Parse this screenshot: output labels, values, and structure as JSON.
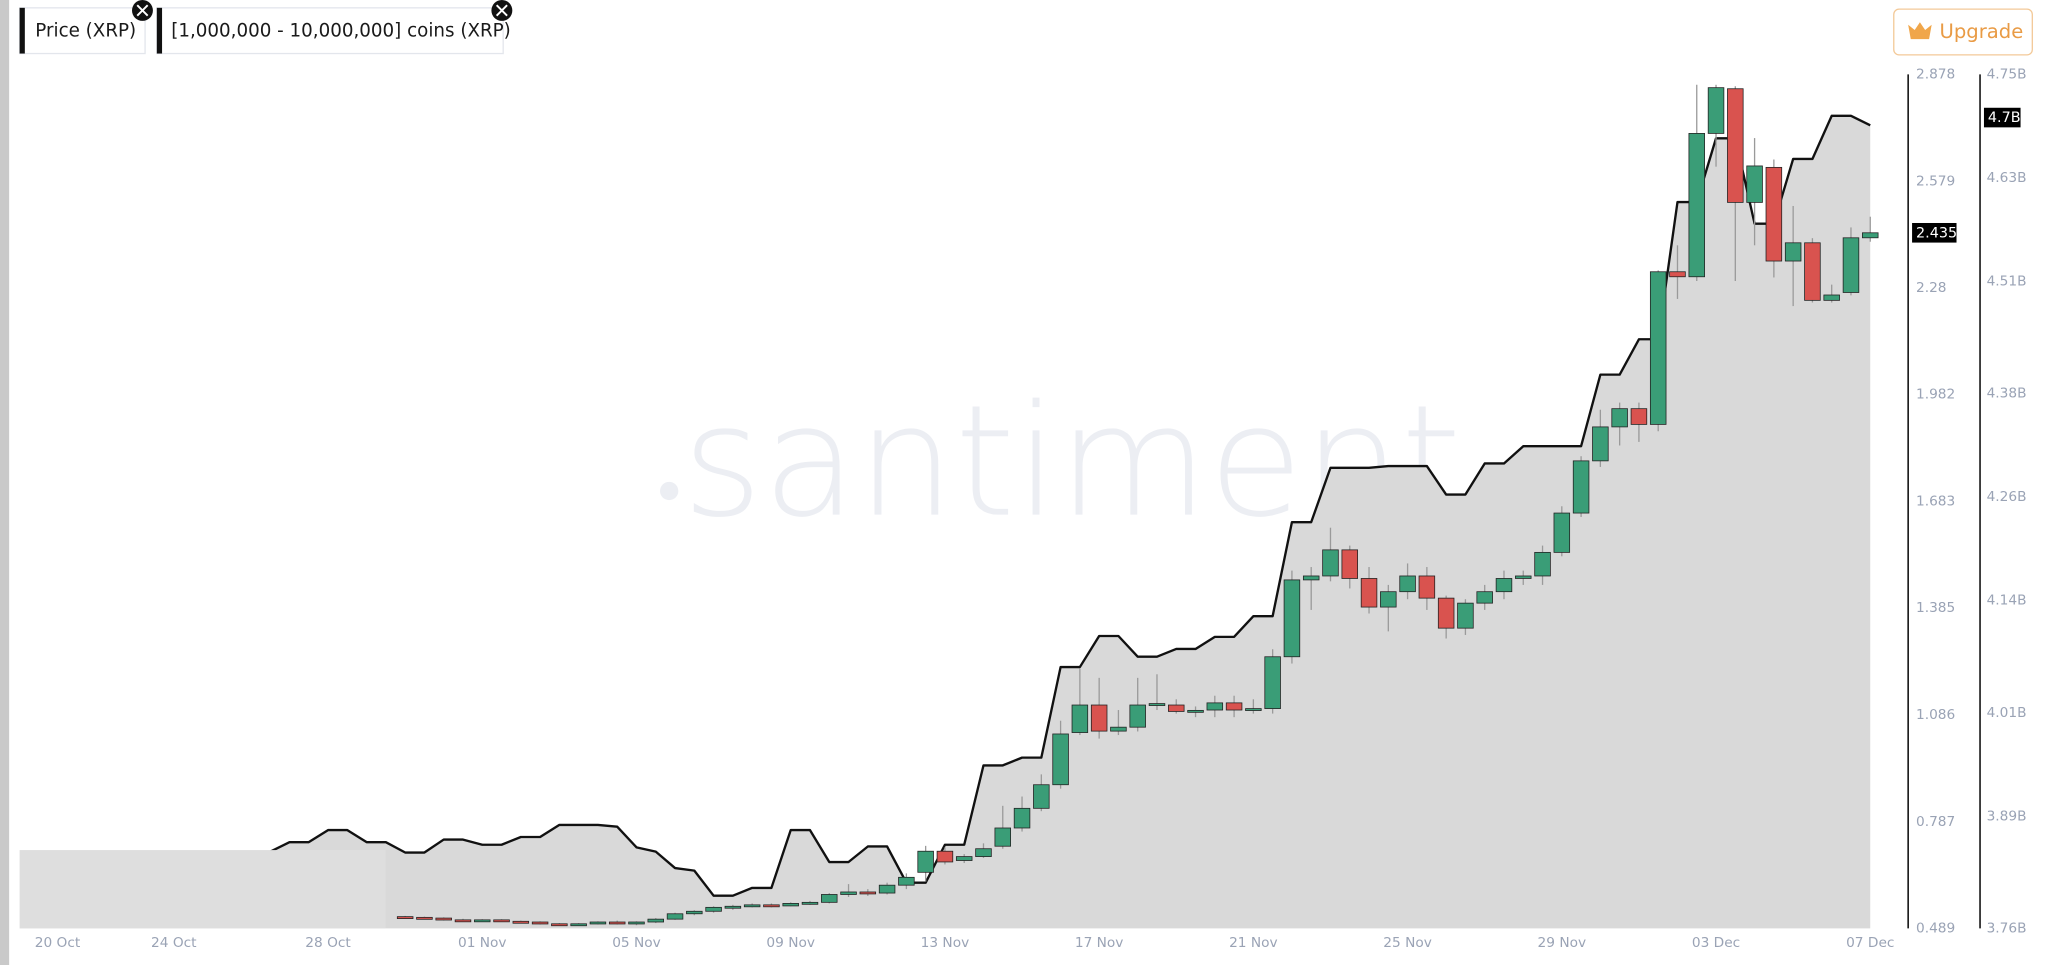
{
  "chart_data": {
    "type": "candlestick",
    "categories": [
      "20 Oct",
      null,
      null,
      null,
      null,
      null,
      null,
      null,
      "24 Oct",
      null,
      null,
      null,
      null,
      null,
      null,
      null,
      "28 Oct",
      null,
      null,
      null,
      null,
      null,
      null,
      null,
      "01 Nov",
      null,
      null,
      null,
      null,
      null,
      null,
      null,
      "05 Nov",
      null,
      null,
      null,
      null,
      null,
      null,
      null,
      "09 Nov",
      null,
      null,
      null,
      null,
      null,
      null,
      null,
      "13 Nov",
      null,
      null,
      null,
      null,
      null,
      null,
      null,
      "17 Nov",
      null,
      null,
      null,
      null,
      null,
      null,
      null,
      "21 Nov",
      null,
      null,
      null,
      null,
      null,
      null,
      null,
      "25 Nov",
      null,
      null,
      null,
      null,
      null,
      null,
      null,
      "29 Nov",
      null,
      null,
      null,
      null,
      null,
      null,
      null,
      "03 Dec",
      null,
      null,
      null,
      null,
      null,
      null,
      null,
      "07 Dec"
    ],
    "series": [
      {
        "name": "Price (XRP)",
        "type": "candlestick",
        "up_color": "#3a9d77",
        "down_color": "#d9534f",
        "open": [
          null,
          null,
          null,
          null,
          null,
          null,
          null,
          null,
          null,
          null,
          null,
          null,
          null,
          null,
          null,
          null,
          null,
          null,
          null,
          null,
          0.522,
          0.52,
          0.518,
          0.513,
          0.511,
          0.513,
          0.509,
          0.507,
          0.502,
          0.5,
          0.502,
          0.507,
          0.504,
          0.507,
          0.515,
          0.53,
          0.537,
          0.548,
          0.551,
          0.555,
          0.552,
          0.559,
          0.562,
          0.584,
          0.591,
          0.588,
          0.61,
          0.646,
          0.705,
          0.679,
          0.69,
          0.719,
          0.77,
          0.825,
          0.891,
          1.037,
          1.114,
          1.041,
          1.052,
          1.114,
          1.114,
          1.096,
          1.1,
          1.12,
          1.1,
          1.104,
          1.249,
          1.464,
          1.475,
          1.548,
          1.468,
          1.388,
          1.431,
          1.475,
          1.413,
          1.329,
          1.399,
          1.431,
          1.468,
          1.475,
          1.541,
          1.651,
          1.797,
          1.892,
          1.943,
          1.899,
          2.326,
          2.312,
          2.713,
          2.838,
          2.52,
          2.618,
          2.356,
          2.407,
          2.246,
          2.268,
          2.421
        ],
        "high": [
          null,
          null,
          null,
          null,
          null,
          null,
          null,
          null,
          null,
          null,
          null,
          null,
          null,
          null,
          null,
          null,
          null,
          null,
          null,
          null,
          0.524,
          0.522,
          0.52,
          0.516,
          0.515,
          0.515,
          0.511,
          0.509,
          0.504,
          0.504,
          0.509,
          0.511,
          0.509,
          0.518,
          0.533,
          0.54,
          0.551,
          0.555,
          0.559,
          0.559,
          0.562,
          0.566,
          0.588,
          0.613,
          0.599,
          0.617,
          0.643,
          0.72,
          0.716,
          0.697,
          0.727,
          0.832,
          0.858,
          0.92,
          1.07,
          1.216,
          1.19,
          1.1,
          1.19,
          1.2,
          1.13,
          1.11,
          1.14,
          1.14,
          1.13,
          1.27,
          1.49,
          1.5,
          1.61,
          1.56,
          1.5,
          1.45,
          1.51,
          1.5,
          1.42,
          1.41,
          1.45,
          1.49,
          1.49,
          1.56,
          1.67,
          1.81,
          1.94,
          1.96,
          1.96,
          2.33,
          2.4,
          2.849,
          2.849,
          2.845,
          2.7,
          2.64,
          2.51,
          2.42,
          2.29,
          2.45,
          2.48
        ],
        "low": [
          null,
          null,
          null,
          null,
          null,
          null,
          null,
          null,
          null,
          null,
          null,
          null,
          null,
          null,
          null,
          null,
          null,
          null,
          null,
          null,
          0.518,
          0.516,
          0.511,
          0.509,
          0.509,
          0.507,
          0.504,
          0.5,
          0.496,
          0.496,
          0.5,
          0.5,
          0.498,
          0.504,
          0.513,
          0.526,
          0.533,
          0.541,
          0.548,
          0.548,
          0.551,
          0.555,
          0.559,
          0.577,
          0.58,
          0.584,
          0.599,
          0.62,
          0.668,
          0.672,
          0.686,
          0.712,
          0.76,
          0.817,
          0.88,
          1.03,
          1.02,
          1.03,
          1.04,
          1.1,
          1.09,
          1.08,
          1.08,
          1.08,
          1.09,
          1.09,
          1.23,
          1.38,
          1.46,
          1.44,
          1.37,
          1.32,
          1.41,
          1.38,
          1.3,
          1.31,
          1.38,
          1.41,
          1.45,
          1.45,
          1.53,
          1.64,
          1.78,
          1.84,
          1.85,
          1.88,
          2.25,
          2.3,
          2.62,
          2.3,
          2.4,
          2.31,
          2.23,
          2.24,
          2.24,
          2.26,
          2.41
        ],
        "close": [
          null,
          null,
          null,
          null,
          null,
          null,
          null,
          null,
          null,
          null,
          null,
          null,
          null,
          null,
          null,
          null,
          null,
          null,
          null,
          null,
          0.52,
          0.518,
          0.513,
          0.511,
          0.513,
          0.509,
          0.507,
          0.502,
          0.5,
          0.502,
          0.507,
          0.504,
          0.507,
          0.515,
          0.53,
          0.537,
          0.548,
          0.551,
          0.555,
          0.552,
          0.559,
          0.562,
          0.584,
          0.591,
          0.588,
          0.61,
          0.632,
          0.705,
          0.675,
          0.69,
          0.712,
          0.77,
          0.825,
          0.891,
          1.033,
          1.114,
          1.041,
          1.052,
          1.114,
          1.118,
          1.096,
          1.099,
          1.12,
          1.1,
          1.104,
          1.249,
          1.464,
          1.475,
          1.548,
          1.468,
          1.388,
          1.431,
          1.475,
          1.413,
          1.329,
          1.399,
          1.431,
          1.468,
          1.475,
          1.541,
          1.651,
          1.797,
          1.892,
          1.943,
          1.899,
          2.326,
          2.312,
          2.713,
          2.841,
          2.52,
          2.622,
          2.356,
          2.407,
          2.246,
          2.261,
          2.421,
          2.435
        ]
      },
      {
        "name": "[1,000,000 - 10,000,000] coins (XRP)",
        "type": "area",
        "axis": "y2",
        "color": "#111111",
        "fill": "#d9d9d9",
        "values": [
          null,
          null,
          null,
          null,
          null,
          null,
          null,
          null,
          null,
          null,
          null,
          null,
          null,
          3.849,
          3.86,
          3.86,
          3.874,
          3.874,
          3.86,
          3.86,
          3.848,
          3.848,
          3.863,
          3.863,
          3.857,
          3.857,
          3.866,
          3.866,
          3.88,
          3.88,
          3.88,
          3.878,
          3.854,
          3.849,
          3.83,
          3.827,
          3.798,
          3.798,
          3.807,
          3.807,
          3.874,
          3.874,
          3.837,
          3.837,
          3.855,
          3.855,
          3.813,
          3.813,
          3.857,
          3.857,
          3.949,
          3.949,
          3.958,
          3.958,
          4.063,
          4.063,
          4.099,
          4.099,
          4.075,
          4.075,
          4.084,
          4.084,
          4.098,
          4.098,
          4.122,
          4.122,
          4.231,
          4.231,
          4.294,
          4.294,
          4.294,
          4.296,
          4.296,
          4.296,
          4.263,
          4.263,
          4.299,
          4.299,
          4.319,
          4.319,
          4.319,
          4.319,
          4.402,
          4.402,
          4.443,
          4.443,
          4.602,
          4.602,
          4.676,
          4.676,
          4.577,
          4.577,
          4.652,
          4.652,
          4.702,
          4.702,
          4.691
        ]
      }
    ],
    "ylim": [
      0.489,
      2.878
    ],
    "yticks": [
      0.489,
      0.787,
      1.086,
      1.385,
      1.683,
      1.982,
      2.28,
      2.579,
      2.878
    ],
    "y2lim": [
      3.76,
      4.75
    ],
    "y2ticks": [
      {
        "value": 3.76,
        "label": "3.76B"
      },
      {
        "value": 3.89,
        "label": "3.89B"
      },
      {
        "value": 4.01,
        "label": "4.01B"
      },
      {
        "value": 4.14,
        "label": "4.14B"
      },
      {
        "value": 4.26,
        "label": "4.26B"
      },
      {
        "value": 4.38,
        "label": "4.38B"
      },
      {
        "value": 4.51,
        "label": "4.51B"
      },
      {
        "value": 4.63,
        "label": "4.63B"
      },
      {
        "value": 4.75,
        "label": "4.75B"
      }
    ],
    "annotations": [
      {
        "text": "2.435",
        "axis": "y",
        "value": 2.435
      },
      {
        "text": "4.7B",
        "axis": "y2",
        "value": 4.7
      }
    ],
    "watermark": "santiment"
  },
  "toolbar": {
    "upgrade": "Upgrade"
  }
}
